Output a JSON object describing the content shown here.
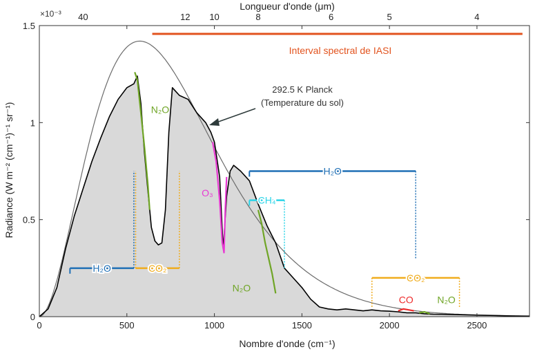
{
  "chart_data": {
    "type": "line",
    "xlabel": "Nombre d'onde (cm⁻¹)",
    "ylabel": "Radiance (W m⁻² (cm⁻¹)⁻¹ sr⁻¹)",
    "top_axis_label": "Longueur d'onde (μm)",
    "y_exponent": "×10⁻³",
    "xlim": [
      0,
      2800
    ],
    "ylim": [
      0,
      1.5
    ],
    "x_ticks": [
      0,
      500,
      1000,
      1500,
      2000,
      2500
    ],
    "y_ticks": [
      0,
      0.5,
      1,
      1.5
    ],
    "x_tick_labels": [
      "0",
      "500",
      "1000",
      "1500",
      "2000",
      "2500"
    ],
    "y_tick_labels": [
      "0",
      "0.5",
      "1",
      "1.5"
    ],
    "top_ticks": [
      {
        "label": "40",
        "x": 250
      },
      {
        "label": "12",
        "x": 833.3
      },
      {
        "label": "10",
        "x": 1000
      },
      {
        "label": "8",
        "x": 1250
      },
      {
        "label": "6",
        "x": 1666.7
      },
      {
        "label": "5",
        "x": 2000
      },
      {
        "label": "4",
        "x": 2500
      }
    ],
    "planck": {
      "name": "292.5 K Planck",
      "sublabel": "(Temperature du sol)",
      "temperature_K": 292.5,
      "color": "#6b6b6b"
    },
    "spectrum": {
      "color": "#000000",
      "fill_color": "#d9d9d9",
      "points": [
        [
          0,
          0
        ],
        [
          50,
          0.04
        ],
        [
          100,
          0.15
        ],
        [
          150,
          0.35
        ],
        [
          200,
          0.52
        ],
        [
          250,
          0.66
        ],
        [
          300,
          0.8
        ],
        [
          350,
          0.92
        ],
        [
          400,
          1.03
        ],
        [
          450,
          1.12
        ],
        [
          500,
          1.18
        ],
        [
          540,
          1.2
        ],
        [
          560,
          1.24
        ],
        [
          580,
          1.1
        ],
        [
          600,
          0.85
        ],
        [
          620,
          0.65
        ],
        [
          640,
          0.46
        ],
        [
          660,
          0.39
        ],
        [
          680,
          0.37
        ],
        [
          700,
          0.38
        ],
        [
          720,
          0.55
        ],
        [
          740,
          0.95
        ],
        [
          760,
          1.18
        ],
        [
          780,
          1.16
        ],
        [
          800,
          1.14
        ],
        [
          850,
          1.12
        ],
        [
          900,
          1.05
        ],
        [
          950,
          1.0
        ],
        [
          980,
          0.95
        ],
        [
          1000,
          0.9
        ],
        [
          1030,
          0.72
        ],
        [
          1050,
          0.35
        ],
        [
          1070,
          0.62
        ],
        [
          1090,
          0.75
        ],
        [
          1110,
          0.78
        ],
        [
          1150,
          0.75
        ],
        [
          1200,
          0.7
        ],
        [
          1250,
          0.58
        ],
        [
          1300,
          0.47
        ],
        [
          1350,
          0.38
        ],
        [
          1400,
          0.25
        ],
        [
          1450,
          0.2
        ],
        [
          1500,
          0.15
        ],
        [
          1550,
          0.09
        ],
        [
          1600,
          0.05
        ],
        [
          1650,
          0.04
        ],
        [
          1700,
          0.035
        ],
        [
          1750,
          0.04
        ],
        [
          1800,
          0.035
        ],
        [
          1850,
          0.03
        ],
        [
          1900,
          0.035
        ],
        [
          1950,
          0.03
        ],
        [
          2000,
          0.028
        ],
        [
          2050,
          0.025
        ],
        [
          2100,
          0.02
        ],
        [
          2150,
          0.02
        ],
        [
          2200,
          0.015
        ],
        [
          2250,
          0.013
        ],
        [
          2300,
          0.012
        ],
        [
          2400,
          0.01
        ],
        [
          2500,
          0.008
        ],
        [
          2600,
          0.006
        ],
        [
          2700,
          0.004
        ],
        [
          2800,
          0.003
        ]
      ]
    },
    "iasi_band": {
      "label": "Interval spectral de IASI",
      "x_start": 645,
      "x_end": 2760,
      "color": "#e2531e"
    },
    "gas_bands": [
      {
        "label": "H₂O",
        "x_start": 175,
        "x_end": 540,
        "y": 0.25,
        "y_end": 0.75,
        "color": "#1f6fb5",
        "side": "right"
      },
      {
        "label": "CO₂",
        "x_start": 550,
        "x_end": 800,
        "y": 0.25,
        "y_end": 0.75,
        "color": "#f0ac1c",
        "side": "both"
      },
      {
        "label": "H₂O",
        "x_start": 1200,
        "x_end": 2150,
        "y": 0.75,
        "y_end": 0.3,
        "color": "#1f6fb5",
        "side": "right"
      },
      {
        "label": "CH₄",
        "x_start": 1200,
        "x_end": 1400,
        "y": 0.6,
        "y_end": 0.25,
        "color": "#2ad4e8",
        "side": "right"
      },
      {
        "label": "CO₂",
        "x_start": 1900,
        "x_end": 2400,
        "y": 0.2,
        "y_end": 0.05,
        "color": "#f0ac1c",
        "side": "both"
      }
    ],
    "gas_labels": [
      {
        "label": "N₂O",
        "x": 690,
        "y": 1.05,
        "color": "#6fa526"
      },
      {
        "label": "O₃",
        "x": 960,
        "y": 0.62,
        "color": "#e83ad3"
      },
      {
        "label": "N₂O",
        "x": 1155,
        "y": 0.13,
        "color": "#6fa526"
      },
      {
        "label": "CO",
        "x": 2095,
        "y": 0.07,
        "color": "#ee2a2a"
      },
      {
        "label": "N₂O",
        "x": 2325,
        "y": 0.07,
        "color": "#6fa526"
      }
    ],
    "highlights": [
      {
        "gas": "N2O",
        "color": "#6fa526",
        "points": [
          [
            545,
            1.26
          ],
          [
            560,
            1.22
          ],
          [
            580,
            1.05
          ],
          [
            600,
            0.88
          ],
          [
            620,
            0.68
          ],
          [
            630,
            0.55
          ]
        ]
      },
      {
        "gas": "O3",
        "color": "#e83ad3",
        "points": [
          [
            990,
            0.9
          ],
          [
            1010,
            0.8
          ],
          [
            1030,
            0.6
          ],
          [
            1045,
            0.38
          ],
          [
            1055,
            0.33
          ],
          [
            1062,
            0.55
          ],
          [
            1070,
            0.72
          ]
        ]
      },
      {
        "gas": "N2O",
        "color": "#6fa526",
        "points": [
          [
            1250,
            0.55
          ],
          [
            1270,
            0.48
          ],
          [
            1290,
            0.38
          ],
          [
            1310,
            0.3
          ],
          [
            1330,
            0.22
          ],
          [
            1350,
            0.12
          ]
        ]
      },
      {
        "gas": "CO",
        "color": "#ee2a2a",
        "points": [
          [
            2050,
            0.03
          ],
          [
            2080,
            0.04
          ],
          [
            2110,
            0.035
          ],
          [
            2140,
            0.03
          ]
        ]
      },
      {
        "gas": "N2O",
        "color": "#6fa526",
        "points": [
          [
            2170,
            0.02
          ],
          [
            2200,
            0.025
          ],
          [
            2230,
            0.015
          ]
        ]
      }
    ]
  }
}
